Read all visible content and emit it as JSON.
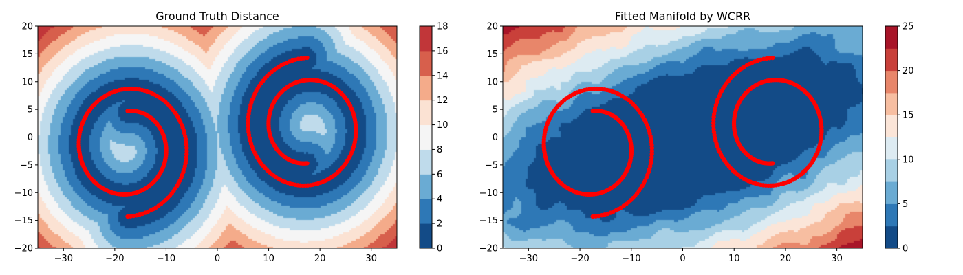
{
  "chart_data": [
    {
      "type": "heatmap",
      "title": "Ground Truth Distance",
      "xlim": [
        -35,
        35
      ],
      "ylim": [
        -20,
        20
      ],
      "xticks": [
        -30,
        -20,
        -10,
        0,
        10,
        20,
        30
      ],
      "yticks": [
        -20,
        -15,
        -10,
        -5,
        0,
        5,
        10,
        15,
        20
      ],
      "colorbar": {
        "levels": [
          0,
          2,
          4,
          6,
          8,
          10,
          12,
          14,
          16,
          18
        ],
        "ticks": [
          0,
          2,
          4,
          6,
          8,
          10,
          12,
          14,
          16,
          18
        ],
        "colors": [
          "#134b87",
          "#2e78b6",
          "#6aabd3",
          "#bfdbeb",
          "#f5f5f5",
          "#fbe2d3",
          "#f4ab8a",
          "#d75f4c",
          "#c13639",
          "#67001f"
        ]
      },
      "field": "distance from red spiral points (contour bands of width 2)",
      "spirals": [
        {
          "center": [
            -17.5,
            -1.8
          ],
          "start_angle_deg": 90,
          "start_radius": 6.5,
          "end_radius": 12.5,
          "turns": 1.5,
          "direction": "clockwise-outward"
        },
        {
          "center": [
            17.5,
            1.8
          ],
          "start_angle_deg": 270,
          "start_radius": 6.5,
          "end_radius": 12.5,
          "turns": 1.5,
          "direction": "clockwise-outward"
        }
      ],
      "point_color": "#ff0000"
    },
    {
      "type": "heatmap",
      "title": "Fitted Manifold by WCRR",
      "xlim": [
        -35,
        35
      ],
      "ylim": [
        -20,
        20
      ],
      "xticks": [
        -30,
        -20,
        -10,
        0,
        10,
        20,
        30
      ],
      "yticks": [
        -20,
        -15,
        -10,
        -5,
        0,
        5,
        10,
        15,
        20
      ],
      "colorbar": {
        "levels": [
          0,
          2.5,
          5,
          7.5,
          10,
          12.5,
          15,
          17.5,
          20,
          22.5,
          25
        ],
        "ticks": [
          0,
          5,
          10,
          15,
          20,
          25
        ],
        "colors": [
          "#134b87",
          "#2e78b6",
          "#6aabd3",
          "#a8d0e5",
          "#ddebf2",
          "#fbe5d8",
          "#f7bea1",
          "#e8866a",
          "#c9403a",
          "#a81428",
          "#67001f"
        ]
      },
      "field": "distance from fitted manifold blob (contour bands of width 2.5)",
      "spirals": [
        {
          "center": [
            -17.5,
            -1.8
          ],
          "start_angle_deg": 90,
          "start_radius": 6.5,
          "end_radius": 12.5,
          "turns": 1.5,
          "direction": "clockwise-outward"
        },
        {
          "center": [
            17.5,
            1.8
          ],
          "start_angle_deg": 270,
          "start_radius": 6.5,
          "end_radius": 12.5,
          "turns": 1.5,
          "direction": "clockwise-outward"
        }
      ],
      "point_color": "#ff0000"
    }
  ]
}
